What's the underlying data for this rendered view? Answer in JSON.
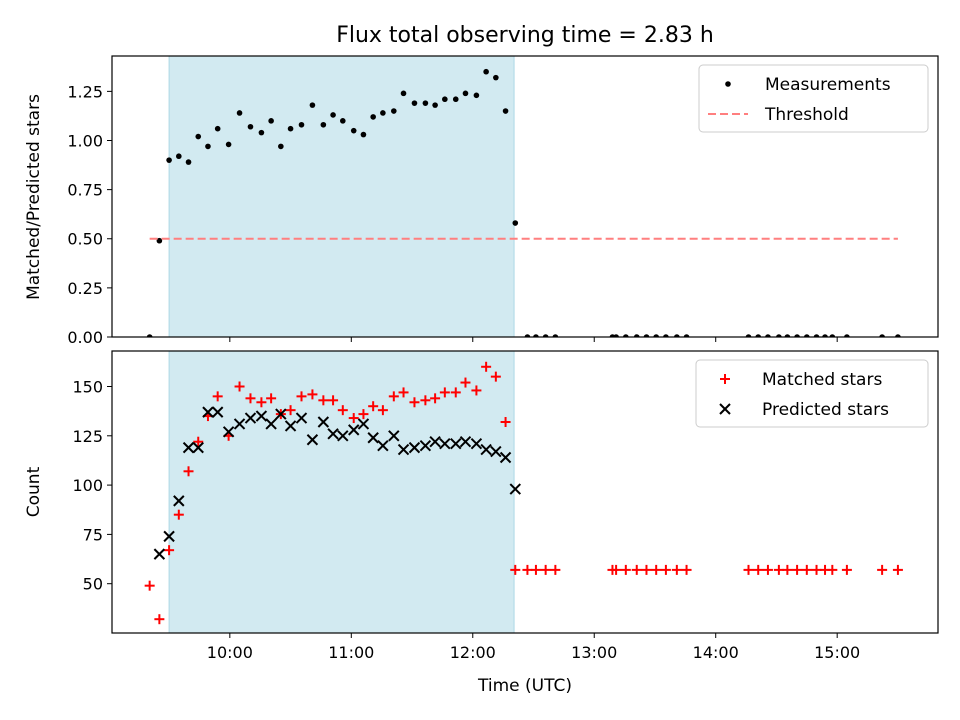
{
  "figure": {
    "title": "Flux total observing time = 2.83 h",
    "xlabel": "Time (UTC)",
    "xticks": [
      {
        "value": 10,
        "label": "10:00"
      },
      {
        "value": 11,
        "label": "11:00"
      },
      {
        "value": 12,
        "label": "12:00"
      },
      {
        "value": 13,
        "label": "13:00"
      },
      {
        "value": 14,
        "label": "14:00"
      },
      {
        "value": 15,
        "label": "15:00"
      }
    ],
    "xlim": [
      9.03,
      15.83
    ],
    "shaded_span": {
      "x0": 9.5,
      "x1": 12.34,
      "color": "#add8e6"
    },
    "colors": {
      "measurements": "#000000",
      "threshold": "#ff7f7f",
      "matched": "#ff0000",
      "predicted": "#000000"
    }
  },
  "chart_data": [
    {
      "type": "scatter",
      "ylabel": "Matched/Predicted stars",
      "ylim": [
        0,
        1.43
      ],
      "yticks": [
        "0.00",
        "0.25",
        "0.50",
        "0.75",
        "1.00",
        "1.25"
      ],
      "legend_position": "upper-right",
      "series": [
        {
          "name": "Measurements",
          "x": [
            9.34,
            9.42,
            9.5,
            9.58,
            9.66,
            9.74,
            9.82,
            9.9,
            9.99,
            10.08,
            10.17,
            10.26,
            10.34,
            10.42,
            10.5,
            10.59,
            10.68,
            10.77,
            10.85,
            10.93,
            11.02,
            11.1,
            11.18,
            11.26,
            11.35,
            11.43,
            11.52,
            11.61,
            11.69,
            11.77,
            11.86,
            11.94,
            12.03,
            12.11,
            12.19,
            12.27,
            12.35,
            12.45,
            12.52,
            12.6,
            12.68,
            13.15,
            13.18,
            13.26,
            13.35,
            13.43,
            13.51,
            13.59,
            13.68,
            13.76,
            14.27,
            14.35,
            14.43,
            14.52,
            14.59,
            14.67,
            14.75,
            14.83,
            14.9,
            14.96,
            15.08,
            15.37,
            15.5
          ],
          "y": [
            0.0,
            0.49,
            0.9,
            0.92,
            0.89,
            1.02,
            0.97,
            1.06,
            0.98,
            1.14,
            1.07,
            1.04,
            1.1,
            0.97,
            1.06,
            1.08,
            1.18,
            1.08,
            1.13,
            1.1,
            1.05,
            1.03,
            1.12,
            1.14,
            1.15,
            1.24,
            1.19,
            1.19,
            1.18,
            1.21,
            1.21,
            1.24,
            1.23,
            1.35,
            1.32,
            1.15,
            0.58,
            0,
            0,
            0,
            0,
            0,
            0,
            0,
            0,
            0,
            0,
            0,
            0,
            0,
            0,
            0,
            0,
            0,
            0,
            0,
            0,
            0,
            0,
            0,
            0,
            0,
            0
          ]
        },
        {
          "name": "Threshold",
          "style": "dashed",
          "x": [
            9.34,
            15.5
          ],
          "y": [
            0.5,
            0.5
          ]
        }
      ]
    },
    {
      "type": "scatter",
      "ylabel": "Count",
      "ylim": [
        25,
        168
      ],
      "yticks": [
        "50",
        "75",
        "100",
        "125",
        "150"
      ],
      "legend_position": "upper-right",
      "series": [
        {
          "name": "Matched stars",
          "marker": "+",
          "x": [
            9.34,
            9.42,
            9.5,
            9.58,
            9.66,
            9.74,
            9.82,
            9.9,
            9.99,
            10.08,
            10.17,
            10.26,
            10.34,
            10.42,
            10.5,
            10.59,
            10.68,
            10.77,
            10.85,
            10.93,
            11.02,
            11.1,
            11.18,
            11.26,
            11.35,
            11.43,
            11.52,
            11.61,
            11.69,
            11.77,
            11.86,
            11.94,
            12.03,
            12.11,
            12.19,
            12.27,
            12.35,
            12.45,
            12.52,
            12.6,
            12.68,
            13.15,
            13.18,
            13.26,
            13.35,
            13.43,
            13.51,
            13.59,
            13.68,
            13.76,
            14.27,
            14.35,
            14.43,
            14.52,
            14.59,
            14.67,
            14.75,
            14.83,
            14.9,
            14.96,
            15.08,
            15.37,
            15.5
          ],
          "y": [
            49,
            32,
            67,
            85,
            107,
            122,
            135,
            145,
            125,
            150,
            144,
            142,
            144,
            136,
            138,
            145,
            146,
            143,
            143,
            138,
            134,
            136,
            140,
            138,
            145,
            147,
            142,
            143,
            144,
            147,
            147,
            152,
            148,
            160,
            155,
            132,
            57,
            57,
            57,
            57,
            57,
            57,
            57,
            57,
            57,
            57,
            57,
            57,
            57,
            57,
            57,
            57,
            57,
            57,
            57,
            57,
            57,
            57,
            57,
            57,
            57,
            57,
            57
          ]
        },
        {
          "name": "Predicted stars",
          "marker": "x",
          "x": [
            9.42,
            9.5,
            9.58,
            9.66,
            9.74,
            9.82,
            9.9,
            9.99,
            10.08,
            10.17,
            10.26,
            10.34,
            10.42,
            10.5,
            10.59,
            10.68,
            10.77,
            10.85,
            10.93,
            11.02,
            11.1,
            11.18,
            11.26,
            11.35,
            11.43,
            11.52,
            11.61,
            11.69,
            11.77,
            11.86,
            11.94,
            12.03,
            12.11,
            12.19,
            12.27,
            12.35
          ],
          "y": [
            65,
            74,
            92,
            119,
            119,
            137,
            137,
            127,
            131,
            134,
            135,
            131,
            136,
            130,
            134,
            123,
            132,
            126,
            125,
            128,
            131,
            124,
            120,
            125,
            118,
            119,
            120,
            122,
            121,
            121,
            122,
            121,
            118,
            117,
            114,
            98
          ]
        }
      ]
    }
  ]
}
